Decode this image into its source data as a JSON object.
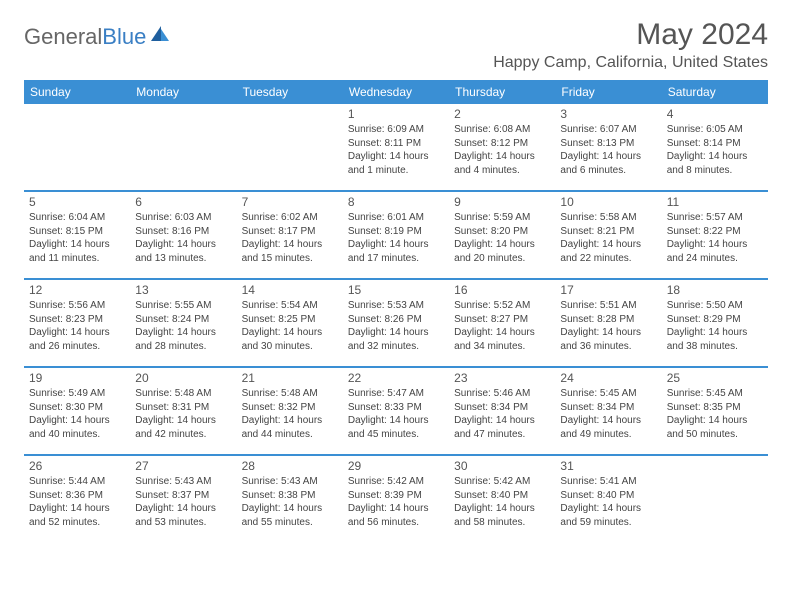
{
  "logo": {
    "word1": "General",
    "word2": "Blue"
  },
  "title": "May 2024",
  "location": "Happy Camp, California, United States",
  "colors": {
    "header_bg": "#3a8fd4",
    "header_text": "#ffffff",
    "rule": "#3a8fd4",
    "logo_gray": "#666666",
    "logo_blue": "#3a7fc4"
  },
  "day_names": [
    "Sunday",
    "Monday",
    "Tuesday",
    "Wednesday",
    "Thursday",
    "Friday",
    "Saturday"
  ],
  "weeks": [
    [
      {
        "n": "",
        "lines": []
      },
      {
        "n": "",
        "lines": []
      },
      {
        "n": "",
        "lines": []
      },
      {
        "n": "1",
        "lines": [
          "Sunrise: 6:09 AM",
          "Sunset: 8:11 PM",
          "Daylight: 14 hours",
          "and 1 minute."
        ]
      },
      {
        "n": "2",
        "lines": [
          "Sunrise: 6:08 AM",
          "Sunset: 8:12 PM",
          "Daylight: 14 hours",
          "and 4 minutes."
        ]
      },
      {
        "n": "3",
        "lines": [
          "Sunrise: 6:07 AM",
          "Sunset: 8:13 PM",
          "Daylight: 14 hours",
          "and 6 minutes."
        ]
      },
      {
        "n": "4",
        "lines": [
          "Sunrise: 6:05 AM",
          "Sunset: 8:14 PM",
          "Daylight: 14 hours",
          "and 8 minutes."
        ]
      }
    ],
    [
      {
        "n": "5",
        "lines": [
          "Sunrise: 6:04 AM",
          "Sunset: 8:15 PM",
          "Daylight: 14 hours",
          "and 11 minutes."
        ]
      },
      {
        "n": "6",
        "lines": [
          "Sunrise: 6:03 AM",
          "Sunset: 8:16 PM",
          "Daylight: 14 hours",
          "and 13 minutes."
        ]
      },
      {
        "n": "7",
        "lines": [
          "Sunrise: 6:02 AM",
          "Sunset: 8:17 PM",
          "Daylight: 14 hours",
          "and 15 minutes."
        ]
      },
      {
        "n": "8",
        "lines": [
          "Sunrise: 6:01 AM",
          "Sunset: 8:19 PM",
          "Daylight: 14 hours",
          "and 17 minutes."
        ]
      },
      {
        "n": "9",
        "lines": [
          "Sunrise: 5:59 AM",
          "Sunset: 8:20 PM",
          "Daylight: 14 hours",
          "and 20 minutes."
        ]
      },
      {
        "n": "10",
        "lines": [
          "Sunrise: 5:58 AM",
          "Sunset: 8:21 PM",
          "Daylight: 14 hours",
          "and 22 minutes."
        ]
      },
      {
        "n": "11",
        "lines": [
          "Sunrise: 5:57 AM",
          "Sunset: 8:22 PM",
          "Daylight: 14 hours",
          "and 24 minutes."
        ]
      }
    ],
    [
      {
        "n": "12",
        "lines": [
          "Sunrise: 5:56 AM",
          "Sunset: 8:23 PM",
          "Daylight: 14 hours",
          "and 26 minutes."
        ]
      },
      {
        "n": "13",
        "lines": [
          "Sunrise: 5:55 AM",
          "Sunset: 8:24 PM",
          "Daylight: 14 hours",
          "and 28 minutes."
        ]
      },
      {
        "n": "14",
        "lines": [
          "Sunrise: 5:54 AM",
          "Sunset: 8:25 PM",
          "Daylight: 14 hours",
          "and 30 minutes."
        ]
      },
      {
        "n": "15",
        "lines": [
          "Sunrise: 5:53 AM",
          "Sunset: 8:26 PM",
          "Daylight: 14 hours",
          "and 32 minutes."
        ]
      },
      {
        "n": "16",
        "lines": [
          "Sunrise: 5:52 AM",
          "Sunset: 8:27 PM",
          "Daylight: 14 hours",
          "and 34 minutes."
        ]
      },
      {
        "n": "17",
        "lines": [
          "Sunrise: 5:51 AM",
          "Sunset: 8:28 PM",
          "Daylight: 14 hours",
          "and 36 minutes."
        ]
      },
      {
        "n": "18",
        "lines": [
          "Sunrise: 5:50 AM",
          "Sunset: 8:29 PM",
          "Daylight: 14 hours",
          "and 38 minutes."
        ]
      }
    ],
    [
      {
        "n": "19",
        "lines": [
          "Sunrise: 5:49 AM",
          "Sunset: 8:30 PM",
          "Daylight: 14 hours",
          "and 40 minutes."
        ]
      },
      {
        "n": "20",
        "lines": [
          "Sunrise: 5:48 AM",
          "Sunset: 8:31 PM",
          "Daylight: 14 hours",
          "and 42 minutes."
        ]
      },
      {
        "n": "21",
        "lines": [
          "Sunrise: 5:48 AM",
          "Sunset: 8:32 PM",
          "Daylight: 14 hours",
          "and 44 minutes."
        ]
      },
      {
        "n": "22",
        "lines": [
          "Sunrise: 5:47 AM",
          "Sunset: 8:33 PM",
          "Daylight: 14 hours",
          "and 45 minutes."
        ]
      },
      {
        "n": "23",
        "lines": [
          "Sunrise: 5:46 AM",
          "Sunset: 8:34 PM",
          "Daylight: 14 hours",
          "and 47 minutes."
        ]
      },
      {
        "n": "24",
        "lines": [
          "Sunrise: 5:45 AM",
          "Sunset: 8:34 PM",
          "Daylight: 14 hours",
          "and 49 minutes."
        ]
      },
      {
        "n": "25",
        "lines": [
          "Sunrise: 5:45 AM",
          "Sunset: 8:35 PM",
          "Daylight: 14 hours",
          "and 50 minutes."
        ]
      }
    ],
    [
      {
        "n": "26",
        "lines": [
          "Sunrise: 5:44 AM",
          "Sunset: 8:36 PM",
          "Daylight: 14 hours",
          "and 52 minutes."
        ]
      },
      {
        "n": "27",
        "lines": [
          "Sunrise: 5:43 AM",
          "Sunset: 8:37 PM",
          "Daylight: 14 hours",
          "and 53 minutes."
        ]
      },
      {
        "n": "28",
        "lines": [
          "Sunrise: 5:43 AM",
          "Sunset: 8:38 PM",
          "Daylight: 14 hours",
          "and 55 minutes."
        ]
      },
      {
        "n": "29",
        "lines": [
          "Sunrise: 5:42 AM",
          "Sunset: 8:39 PM",
          "Daylight: 14 hours",
          "and 56 minutes."
        ]
      },
      {
        "n": "30",
        "lines": [
          "Sunrise: 5:42 AM",
          "Sunset: 8:40 PM",
          "Daylight: 14 hours",
          "and 58 minutes."
        ]
      },
      {
        "n": "31",
        "lines": [
          "Sunrise: 5:41 AM",
          "Sunset: 8:40 PM",
          "Daylight: 14 hours",
          "and 59 minutes."
        ]
      },
      {
        "n": "",
        "lines": []
      }
    ]
  ]
}
